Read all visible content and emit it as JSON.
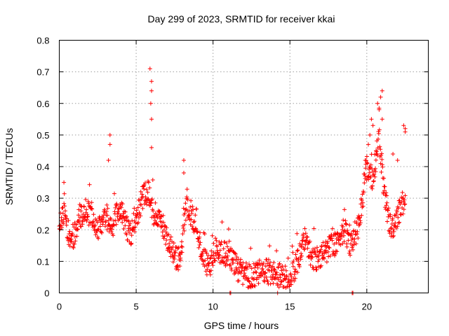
{
  "chart_data": {
    "type": "scatter",
    "title": "Day 299 of 2023, SRMTID for receiver kkai",
    "xlabel": "GPS time / hours",
    "ylabel": "SRMTID / TECUs",
    "xlim": [
      0,
      24.0
    ],
    "ylim": [
      0,
      0.8
    ],
    "xticks": [
      0,
      5,
      10,
      15,
      20
    ],
    "yticks": [
      0,
      0.1,
      0.2,
      0.3,
      0.4,
      0.5,
      0.6,
      0.7,
      0.8
    ],
    "xtick_labels": [
      "0",
      "5",
      "10",
      "15",
      "20"
    ],
    "ytick_labels": [
      "0",
      "0.1",
      "0.2",
      "0.3",
      "0.4",
      "0.5",
      "0.6",
      "0.7",
      "0.8"
    ],
    "grid": true,
    "marker": "plus",
    "series": [
      {
        "name": "SRMTID",
        "color": "#ff0000",
        "trend": [
          [
            0.0,
            0.2
          ],
          [
            0.3,
            0.25
          ],
          [
            0.6,
            0.19
          ],
          [
            1.0,
            0.18
          ],
          [
            1.3,
            0.24
          ],
          [
            1.6,
            0.26
          ],
          [
            2.0,
            0.25
          ],
          [
            2.4,
            0.2
          ],
          [
            2.8,
            0.22
          ],
          [
            3.1,
            0.24
          ],
          [
            3.4,
            0.2
          ],
          [
            3.8,
            0.26
          ],
          [
            4.2,
            0.24
          ],
          [
            4.6,
            0.18
          ],
          [
            5.0,
            0.24
          ],
          [
            5.4,
            0.3
          ],
          [
            5.8,
            0.32
          ],
          [
            6.1,
            0.25
          ],
          [
            6.5,
            0.24
          ],
          [
            7.0,
            0.18
          ],
          [
            7.5,
            0.12
          ],
          [
            7.9,
            0.1
          ],
          [
            8.2,
            0.27
          ],
          [
            8.6,
            0.25
          ],
          [
            9.0,
            0.2
          ],
          [
            9.4,
            0.1
          ],
          [
            9.8,
            0.09
          ],
          [
            10.2,
            0.14
          ],
          [
            10.6,
            0.12
          ],
          [
            11.0,
            0.13
          ],
          [
            11.5,
            0.08
          ],
          [
            12.0,
            0.06
          ],
          [
            12.5,
            0.05
          ],
          [
            13.0,
            0.06
          ],
          [
            13.5,
            0.07
          ],
          [
            14.0,
            0.06
          ],
          [
            14.5,
            0.05
          ],
          [
            15.0,
            0.04
          ],
          [
            15.5,
            0.1
          ],
          [
            16.0,
            0.17
          ],
          [
            16.5,
            0.1
          ],
          [
            17.0,
            0.12
          ],
          [
            17.5,
            0.14
          ],
          [
            18.0,
            0.16
          ],
          [
            18.5,
            0.2
          ],
          [
            19.0,
            0.15
          ],
          [
            19.5,
            0.22
          ],
          [
            20.0,
            0.4
          ],
          [
            20.4,
            0.36
          ],
          [
            20.8,
            0.5
          ],
          [
            21.2,
            0.28
          ],
          [
            21.6,
            0.2
          ],
          [
            22.0,
            0.25
          ],
          [
            22.5,
            0.3
          ]
        ],
        "noise": 0.04,
        "spikes": [
          [
            0.3,
            0.35
          ],
          [
            3.3,
            0.5
          ],
          [
            3.3,
            0.47
          ],
          [
            3.2,
            0.42
          ],
          [
            5.9,
            0.71
          ],
          [
            6.0,
            0.67
          ],
          [
            6.0,
            0.64
          ],
          [
            5.95,
            0.6
          ],
          [
            6.0,
            0.55
          ],
          [
            6.0,
            0.46
          ],
          [
            8.1,
            0.42
          ],
          [
            8.1,
            0.38
          ],
          [
            20.2,
            0.5
          ],
          [
            20.3,
            0.55
          ],
          [
            20.4,
            0.53
          ],
          [
            20.7,
            0.6
          ],
          [
            20.8,
            0.58
          ],
          [
            21.0,
            0.64
          ],
          [
            20.9,
            0.62
          ],
          [
            21.0,
            0.55
          ],
          [
            22.4,
            0.53
          ],
          [
            22.5,
            0.52
          ],
          [
            22.5,
            0.51
          ],
          [
            21.7,
            0.44
          ],
          [
            22.0,
            0.42
          ],
          [
            20.1,
            0.47
          ],
          [
            20.6,
            0.45
          ],
          [
            19.9,
            0.42
          ]
        ],
        "zero_points": [
          11.1,
          11.15,
          14.2,
          19.05,
          19.1
        ]
      }
    ]
  }
}
